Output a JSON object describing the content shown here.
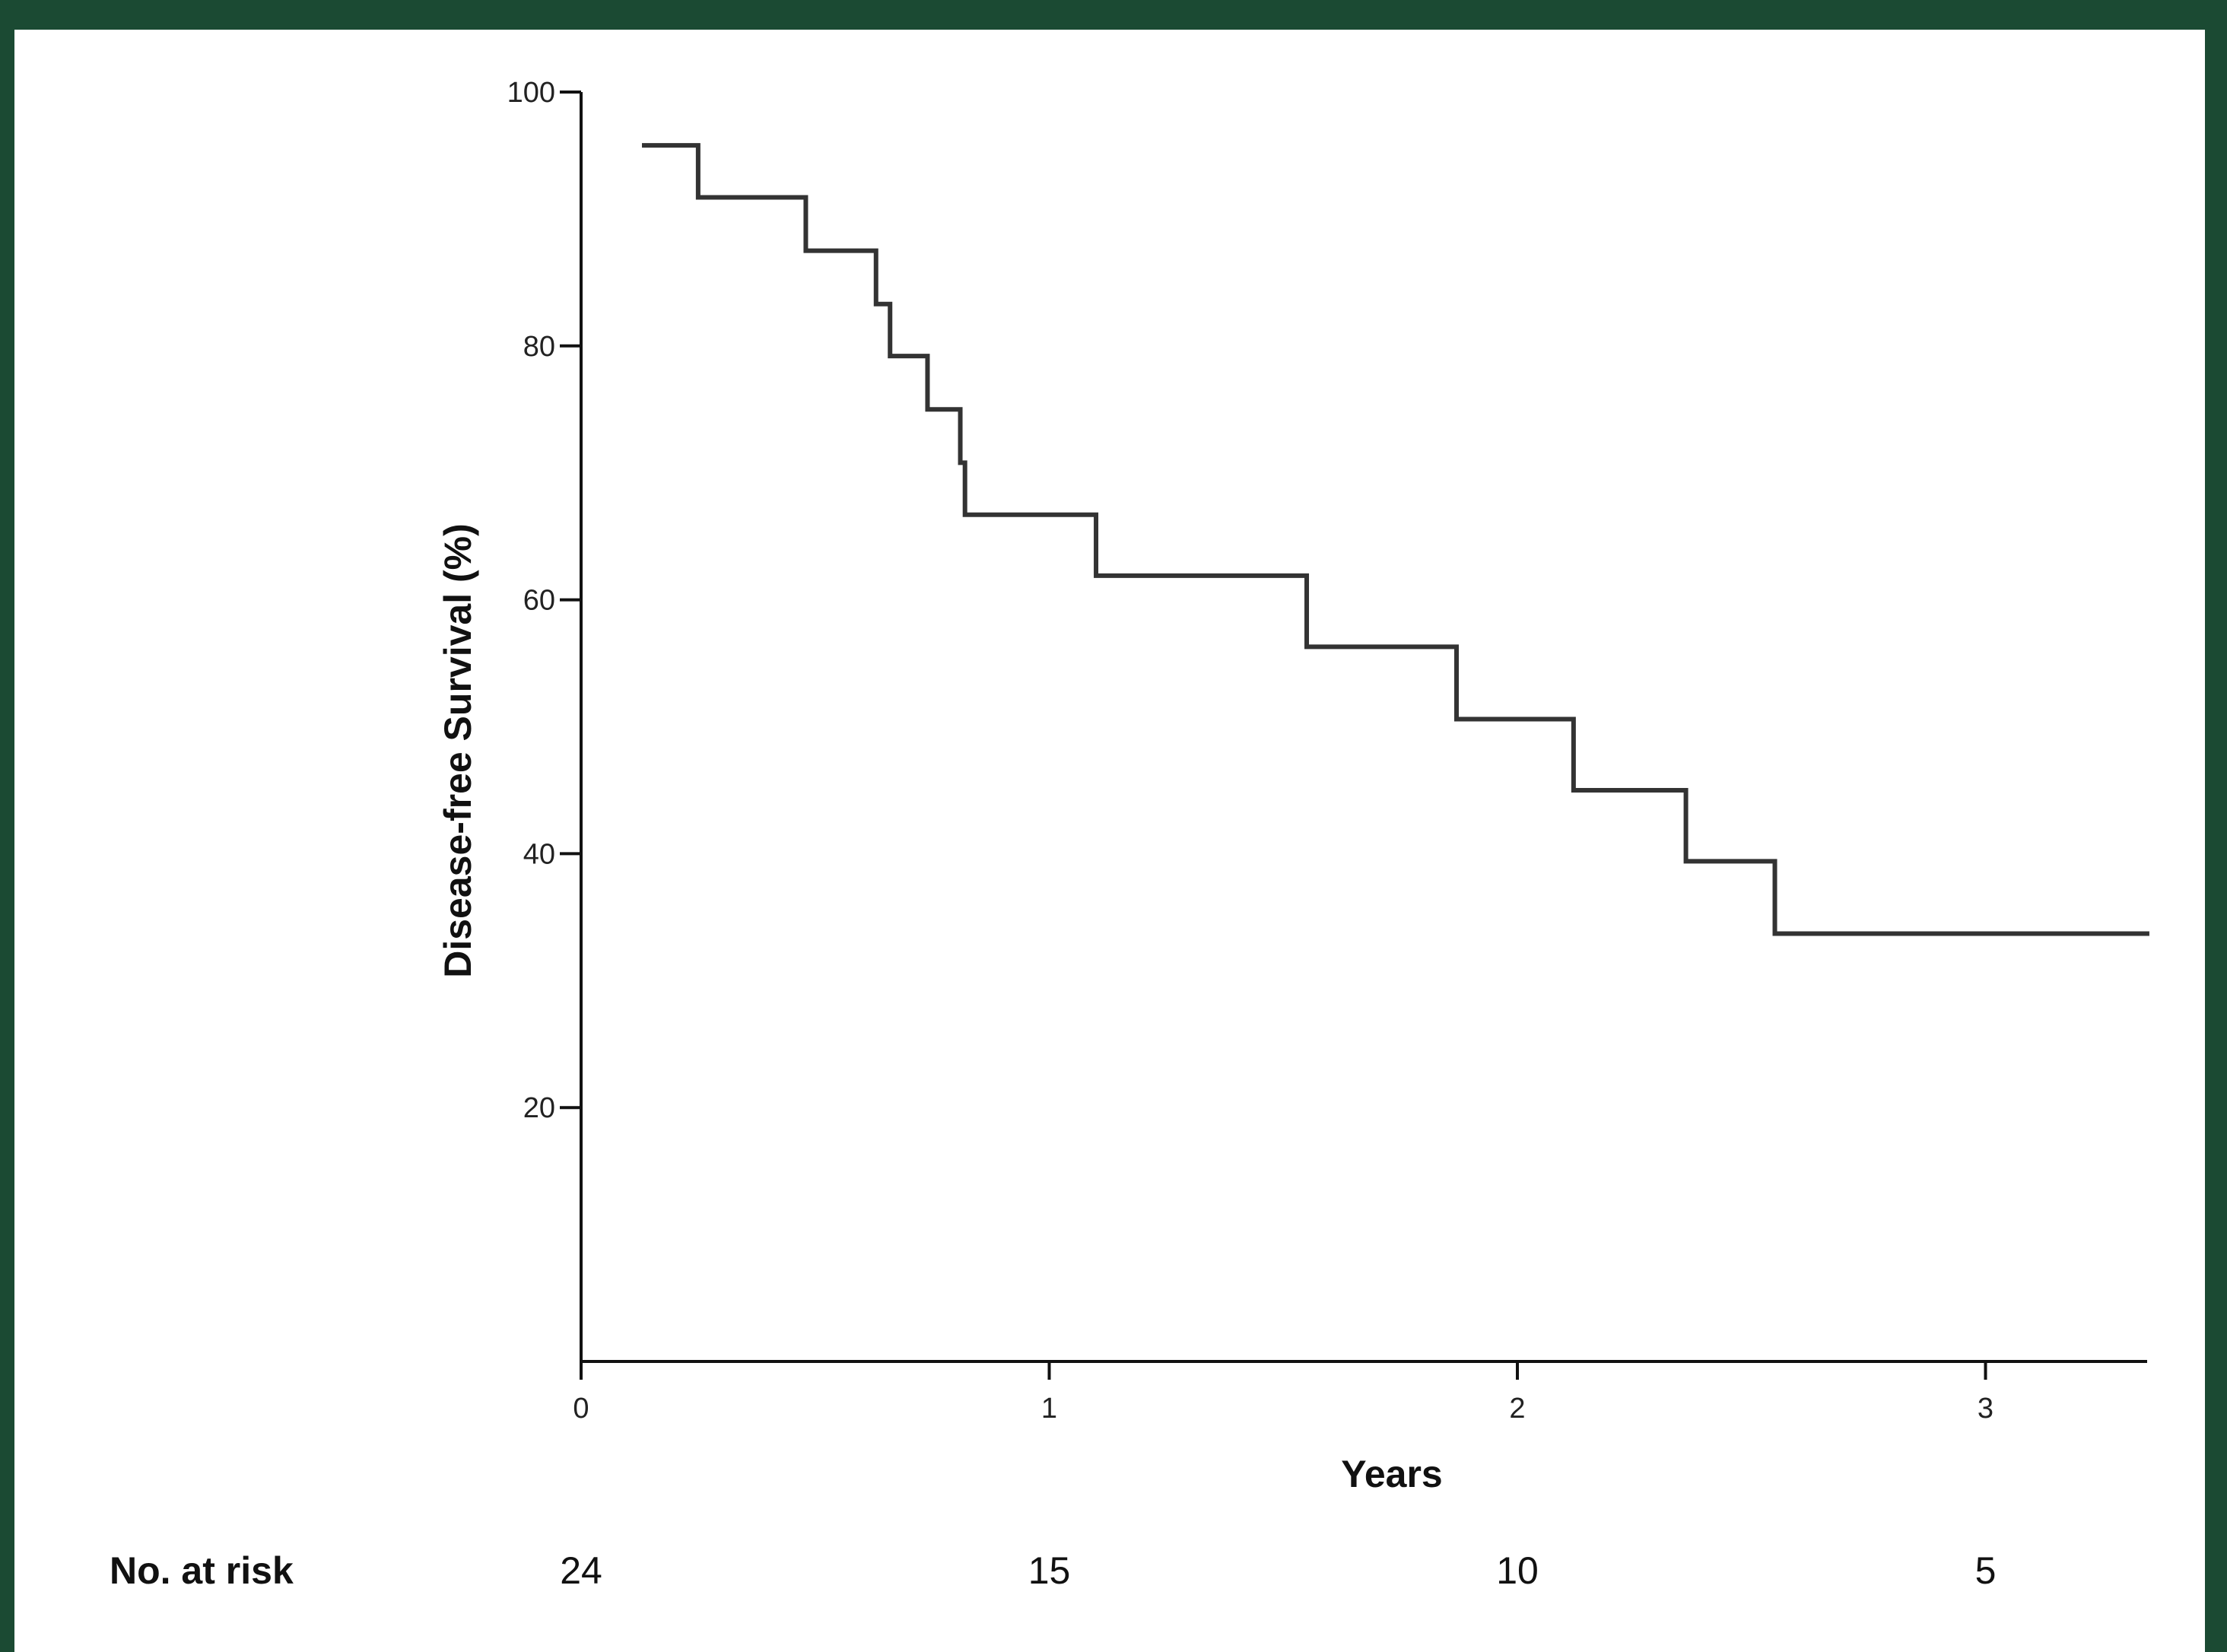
{
  "chart_data": {
    "type": "line",
    "title": "",
    "xlabel": "Years",
    "ylabel": "Disease-free Survival (%)",
    "xlim": [
      0,
      3.35
    ],
    "ylim": [
      0,
      100
    ],
    "x_ticks": [
      0,
      1,
      2,
      3
    ],
    "y_ticks": [
      20,
      40,
      60,
      80,
      100
    ],
    "grid": false,
    "step": true,
    "series": [
      {
        "points": [
          {
            "x": 0.13,
            "y": 95.8
          },
          {
            "x": 0.25,
            "y": 91.7
          },
          {
            "x": 0.48,
            "y": 87.5
          },
          {
            "x": 0.63,
            "y": 83.3
          },
          {
            "x": 0.66,
            "y": 79.2
          },
          {
            "x": 0.74,
            "y": 75.0
          },
          {
            "x": 0.81,
            "y": 70.8
          },
          {
            "x": 0.82,
            "y": 66.7
          },
          {
            "x": 1.1,
            "y": 61.9
          },
          {
            "x": 1.55,
            "y": 56.3
          },
          {
            "x": 1.87,
            "y": 50.6
          },
          {
            "x": 2.12,
            "y": 45.0
          },
          {
            "x": 2.36,
            "y": 39.4
          },
          {
            "x": 2.55,
            "y": 33.7
          },
          {
            "x": 3.35,
            "y": 33.7
          }
        ]
      }
    ],
    "risk_table": {
      "label": "No. at risk",
      "values": [
        {
          "x": 0,
          "n": "24"
        },
        {
          "x": 1,
          "n": "15"
        },
        {
          "x": 2,
          "n": "10"
        },
        {
          "x": 3,
          "n": "5"
        }
      ]
    }
  },
  "colors": {
    "background": "#1b4a33",
    "panel": "#ffffff",
    "line": "#333333",
    "axis": "#111111"
  }
}
